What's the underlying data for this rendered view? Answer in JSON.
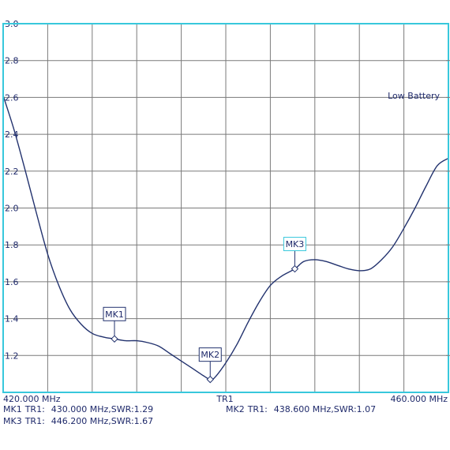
{
  "status": {
    "battery_text": "Low Battery"
  },
  "axis_labels": {
    "x_start": "420.000 MHz",
    "x_center": "TR1",
    "x_end": "460.000 MHz"
  },
  "marker_readouts": [
    {
      "id": "MK1",
      "trace": "TR1:",
      "value": "430.000 MHz,SWR:1.29"
    },
    {
      "id": "MK2",
      "trace": "TR1:",
      "value": "438.600 MHz,SWR:1.07"
    },
    {
      "id": "MK3",
      "trace": "TR1:",
      "value": "446.200 MHz,SWR:1.67"
    }
  ],
  "colors": {
    "frame": "#38c8dc",
    "grid": "#7a7a7a",
    "trace": "#22326e",
    "text": "#1f2a6b",
    "marker_box_active": "#38c8dc"
  },
  "chart_data": {
    "type": "line",
    "title": "",
    "xlabel": "",
    "ylabel": "",
    "xlim": [
      420,
      460
    ],
    "ylim": [
      1.0,
      3.0
    ],
    "y_ticks": [
      "3.0",
      "2.8",
      "2.6",
      "2.4",
      "2.2",
      "2.0",
      "1.8",
      "1.6",
      "1.4",
      "1.2"
    ],
    "y_tick_values": [
      3.0,
      2.8,
      2.6,
      2.4,
      2.2,
      2.0,
      1.8,
      1.6,
      1.4,
      1.2
    ],
    "x_divisions": 10,
    "y_divisions": 10,
    "grid": true,
    "series": [
      {
        "x": [
          420.0,
          421.0,
          422.0,
          423.0,
          424.0,
          425.0,
          426.0,
          427.0,
          428.0,
          429.0,
          430.0,
          431.0,
          432.0,
          433.0,
          434.0,
          435.0,
          436.0,
          437.0,
          438.0,
          438.6,
          439.0,
          440.0,
          441.0,
          442.0,
          443.0,
          444.0,
          445.0,
          446.2,
          447.0,
          448.0,
          449.0,
          450.0,
          451.0,
          452.0,
          453.0,
          454.0,
          455.0,
          456.0,
          457.0,
          458.0,
          459.0,
          460.0
        ],
        "values": [
          2.61,
          2.42,
          2.2,
          1.97,
          1.75,
          1.58,
          1.45,
          1.37,
          1.32,
          1.3,
          1.29,
          1.28,
          1.28,
          1.27,
          1.25,
          1.21,
          1.17,
          1.13,
          1.09,
          1.07,
          1.08,
          1.16,
          1.26,
          1.38,
          1.49,
          1.58,
          1.63,
          1.67,
          1.71,
          1.72,
          1.71,
          1.69,
          1.67,
          1.66,
          1.67,
          1.72,
          1.79,
          1.89,
          2.0,
          2.12,
          2.23,
          2.27
        ]
      }
    ],
    "markers": [
      {
        "label": "MK1",
        "x": 430.0,
        "y": 1.29,
        "highlight": false
      },
      {
        "label": "MK2",
        "x": 438.6,
        "y": 1.07,
        "highlight": false
      },
      {
        "label": "MK3",
        "x": 446.2,
        "y": 1.67,
        "highlight": true
      }
    ]
  }
}
